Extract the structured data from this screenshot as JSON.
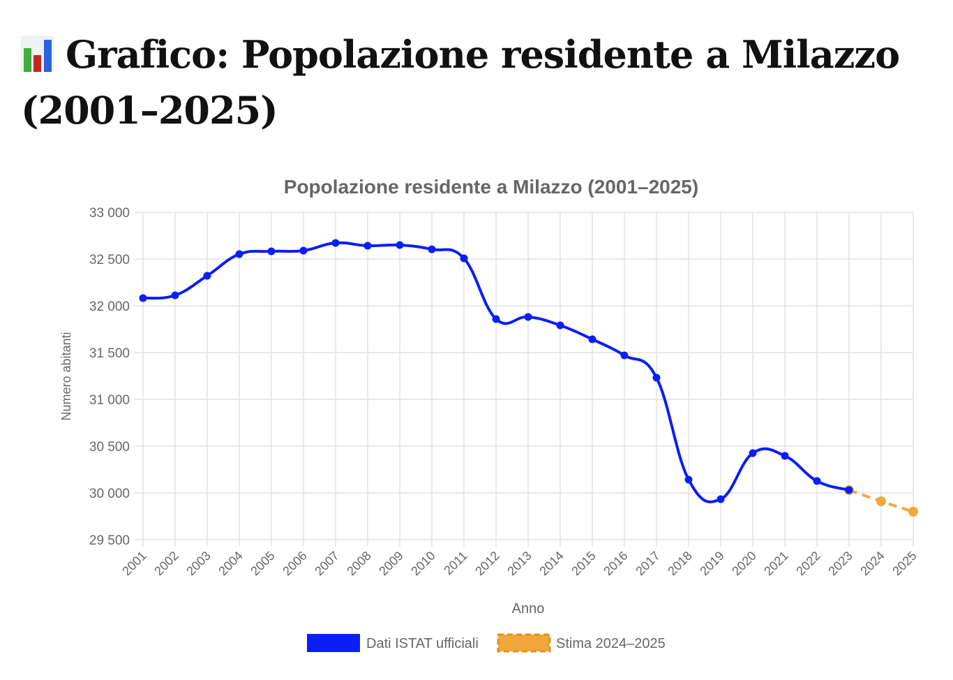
{
  "page_title": "Grafico: Popolazione residente a Milazzo (2001–2025)",
  "title_icon": "bar-chart-icon",
  "chart_data": {
    "type": "line",
    "title": "Popolazione residente a Milazzo (2001–2025)",
    "xlabel": "Anno",
    "ylabel": "Numero abitanti",
    "ylim": [
      29500,
      33000
    ],
    "yticks": [
      29500,
      30000,
      30500,
      31000,
      31500,
      32000,
      32500,
      33000
    ],
    "ytick_labels": [
      "29 500",
      "30 000",
      "30 500",
      "31 000",
      "31 500",
      "32 000",
      "32 500",
      "33 000"
    ],
    "categories": [
      "2001",
      "2002",
      "2003",
      "2004",
      "2005",
      "2006",
      "2007",
      "2008",
      "2009",
      "2010",
      "2011",
      "2012",
      "2013",
      "2014",
      "2015",
      "2016",
      "2017",
      "2018",
      "2019",
      "2020",
      "2021",
      "2022",
      "2023",
      "2024",
      "2025"
    ],
    "grid": true,
    "legend_position": "bottom",
    "series": [
      {
        "name": "Dati ISTAT ufficiali",
        "color": "#0a1ef5",
        "dashed": false,
        "values": [
          32082,
          32112,
          32321,
          32552,
          32582,
          32590,
          32672,
          32642,
          32649,
          32604,
          32507,
          31858,
          31881,
          31791,
          31642,
          31470,
          31231,
          30142,
          29933,
          30425,
          30396,
          30127,
          30030,
          null,
          null
        ]
      },
      {
        "name": "Stima 2024–2025",
        "color": "#f0a83a",
        "dashed": true,
        "values": [
          null,
          null,
          null,
          null,
          null,
          null,
          null,
          null,
          null,
          null,
          null,
          null,
          null,
          null,
          null,
          null,
          null,
          null,
          null,
          null,
          null,
          null,
          30030,
          29910,
          29799
        ]
      }
    ]
  }
}
